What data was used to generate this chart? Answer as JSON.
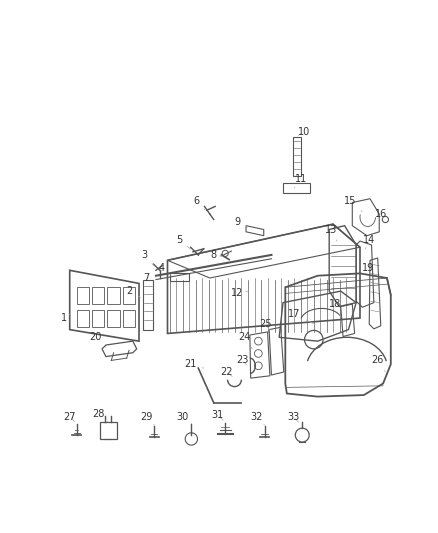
{
  "bg_color": "#ffffff",
  "fig_width": 4.38,
  "fig_height": 5.33,
  "dpi": 100,
  "line_color": "#555555",
  "label_color": "#333333",
  "label_fontsize": 7.0
}
